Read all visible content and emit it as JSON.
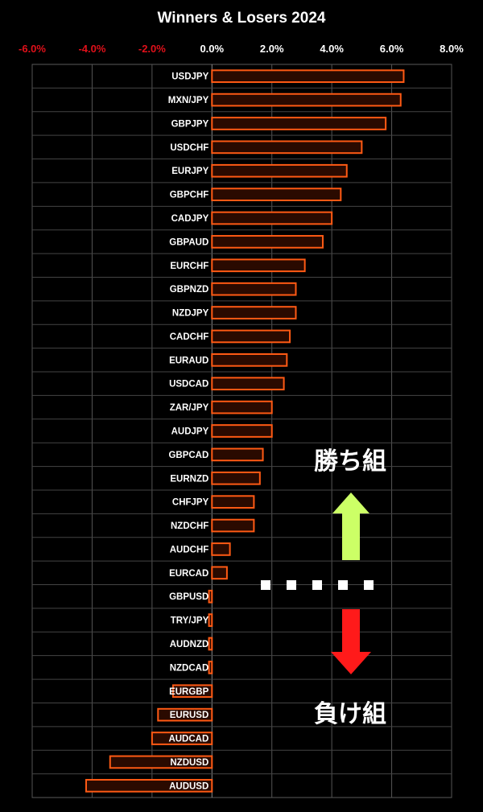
{
  "chart_data": {
    "type": "bar",
    "orientation": "horizontal",
    "title": "Winners & Losers 2024",
    "xlabel": "",
    "ylabel": "",
    "xlim": [
      -0.06,
      0.08
    ],
    "x_ticks": [
      "-6.0%",
      "-4.0%",
      "-2.0%",
      "0.0%",
      "2.0%",
      "4.0%",
      "6.0%",
      "8.0%"
    ],
    "x_tick_values": [
      -0.06,
      -0.04,
      -0.02,
      0.0,
      0.02,
      0.04,
      0.06,
      0.08
    ],
    "negative_tick_color": "#e0101a",
    "positive_tick_color": "#ffffff",
    "grid": true,
    "bar_stroke_color": "#ff5a14",
    "bar_fill_color": "#2a0a00",
    "categories": [
      "USDJPY",
      "MXN/JPY",
      "GBPJPY",
      "USDCHF",
      "EURJPY",
      "GBPCHF",
      "CADJPY",
      "GBPAUD",
      "EURCHF",
      "GBPNZD",
      "NZDJPY",
      "CADCHF",
      "EURAUD",
      "USDCAD",
      "ZAR/JPY",
      "AUDJPY",
      "GBPCAD",
      "EURNZD",
      "CHFJPY",
      "NZDCHF",
      "AUDCHF",
      "EURCAD",
      "GBPUSD",
      "TRY/JPY",
      "AUDNZD",
      "NZDCAD",
      "EURGBP",
      "EURUSD",
      "AUDCAD",
      "NZDUSD",
      "AUDUSD"
    ],
    "values": [
      0.064,
      0.063,
      0.058,
      0.05,
      0.045,
      0.043,
      0.04,
      0.037,
      0.031,
      0.028,
      0.028,
      0.026,
      0.025,
      0.024,
      0.02,
      0.02,
      0.017,
      0.016,
      0.014,
      0.014,
      0.006,
      0.005,
      -0.001,
      -0.001,
      -0.001,
      -0.001,
      -0.013,
      -0.018,
      -0.02,
      -0.034,
      -0.042
    ]
  },
  "annotations": {
    "winners_label": "勝ち組",
    "losers_label": "負け組",
    "up_arrow_color": "#ccff66",
    "down_arrow_color": "#ff1a1a",
    "divider_color": "#ffffff"
  }
}
